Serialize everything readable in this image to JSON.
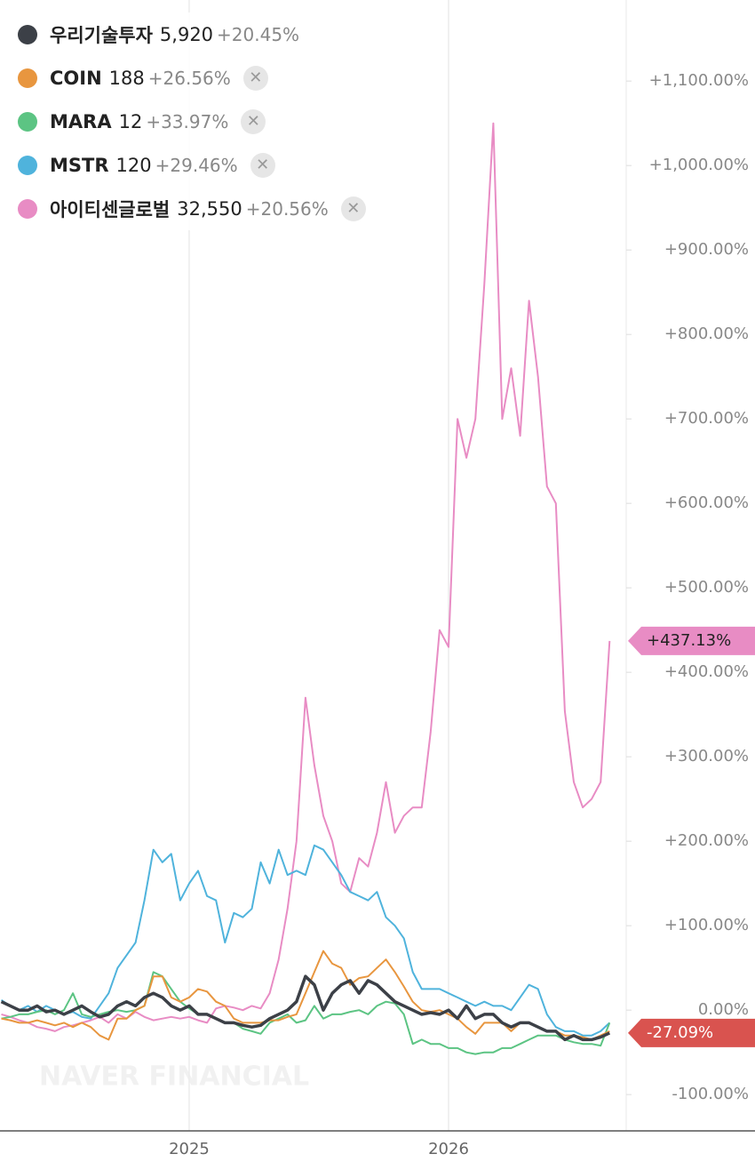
{
  "chart_data": {
    "type": "line",
    "categories": [
      null,
      null,
      null,
      null,
      null,
      null,
      null,
      null,
      null,
      null,
      null,
      null,
      null,
      null,
      null,
      null,
      null,
      null,
      null,
      null,
      null,
      "2025",
      null,
      null,
      null,
      null,
      null,
      null,
      null,
      null,
      null,
      null,
      null,
      null,
      null,
      null,
      null,
      null,
      null,
      null,
      null,
      null,
      null,
      null,
      null,
      null,
      null,
      null,
      null,
      null,
      "2026",
      null,
      null,
      null,
      null,
      null,
      null,
      null,
      null,
      null,
      null,
      null,
      null,
      null,
      null,
      null,
      null,
      null,
      null
    ],
    "ylim": [
      -143,
      1196
    ],
    "yticks": [
      {
        "value": -100,
        "label": "-100.00%"
      },
      {
        "value": 0,
        "label": "0.00%"
      },
      {
        "value": 100,
        "label": "+100.00%"
      },
      {
        "value": 200,
        "label": "+200.00%"
      },
      {
        "value": 300,
        "label": "+300.00%"
      },
      {
        "value": 400,
        "label": "+400.00%"
      },
      {
        "value": 500,
        "label": "+500.00%"
      },
      {
        "value": 600,
        "label": "+600.00%"
      },
      {
        "value": 700,
        "label": "+700.00%"
      },
      {
        "value": 800,
        "label": "+800.00%"
      },
      {
        "value": 900,
        "label": "+900.00%"
      },
      {
        "value": 1000,
        "label": "+1,000.00%"
      },
      {
        "value": 1100,
        "label": "+1,100.00%"
      }
    ],
    "watermark": "NAVER FINANCIAL",
    "series": [
      {
        "name": "우리기술투자",
        "price": "5,920",
        "change": "+20.45%",
        "color": "#3c4047",
        "end_label": "-27.09%",
        "end_label_color": "#d9534f",
        "values": [
          10,
          5,
          0,
          0,
          5,
          -2,
          0,
          -5,
          0,
          5,
          -2,
          -8,
          -5,
          5,
          10,
          5,
          15,
          20,
          15,
          5,
          0,
          5,
          -5,
          -5,
          -10,
          -15,
          -15,
          -18,
          -20,
          -18,
          -10,
          -5,
          0,
          10,
          40,
          30,
          0,
          20,
          30,
          35,
          20,
          35,
          30,
          20,
          10,
          5,
          0,
          -5,
          -3,
          -5,
          0,
          -10,
          5,
          -10,
          -5,
          -5,
          -15,
          -20,
          -15,
          -15,
          -20,
          -25,
          -25,
          -35,
          -30,
          -35,
          -35,
          -32,
          -27.09
        ]
      },
      {
        "name": "COIN",
        "price": "188",
        "change": "+26.56%",
        "color": "#e8963f",
        "values": [
          -10,
          -12,
          -15,
          -15,
          -12,
          -15,
          -18,
          -15,
          -20,
          -15,
          -20,
          -30,
          -35,
          -10,
          -10,
          0,
          5,
          40,
          40,
          15,
          10,
          15,
          25,
          22,
          10,
          5,
          -10,
          -15,
          -15,
          -15,
          -12,
          -12,
          -8,
          -5,
          20,
          45,
          70,
          55,
          50,
          30,
          38,
          40,
          50,
          60,
          45,
          28,
          10,
          0,
          -2,
          0,
          -5,
          -10,
          -20,
          -28,
          -15,
          -15,
          -15,
          -25,
          -15,
          -15,
          -20,
          -25,
          -25,
          -30,
          -30,
          -32,
          -35,
          -30,
          -25
        ]
      },
      {
        "name": "MARA",
        "price": "12",
        "change": "+33.97%",
        "color": "#5cc483",
        "values": [
          -10,
          -8,
          -5,
          -5,
          -2,
          0,
          -5,
          0,
          20,
          -5,
          -8,
          -5,
          -2,
          0,
          -2,
          0,
          5,
          45,
          40,
          25,
          10,
          2,
          -5,
          -5,
          -10,
          -15,
          -15,
          -22,
          -25,
          -28,
          -15,
          -10,
          -5,
          -15,
          -12,
          5,
          -10,
          -5,
          -5,
          -2,
          0,
          -5,
          5,
          10,
          8,
          -5,
          -40,
          -35,
          -40,
          -40,
          -45,
          -45,
          -50,
          -52,
          -50,
          -50,
          -45,
          -45,
          -40,
          -35,
          -30,
          -30,
          -30,
          -35,
          -38,
          -40,
          -40,
          -42,
          -15
        ]
      },
      {
        "name": "MSTR",
        "price": "120",
        "change": "+29.46%",
        "color": "#4fb3dc",
        "values": [
          12,
          5,
          0,
          5,
          -2,
          5,
          0,
          -5,
          -2,
          -8,
          -10,
          5,
          20,
          50,
          65,
          80,
          130,
          190,
          175,
          185,
          130,
          150,
          165,
          135,
          130,
          80,
          115,
          110,
          120,
          175,
          150,
          190,
          160,
          165,
          160,
          195,
          190,
          175,
          160,
          140,
          135,
          130,
          140,
          110,
          100,
          85,
          45,
          25,
          25,
          25,
          20,
          15,
          10,
          5,
          10,
          5,
          5,
          0,
          15,
          30,
          25,
          -5,
          -20,
          -25,
          -25,
          -30,
          -30,
          -25,
          -15
        ]
      },
      {
        "name": "아이티센글로벌",
        "price": "32,550",
        "change": "+20.56%",
        "color": "#e88cc4",
        "end_label": "+437.13%",
        "end_label_color": "#e88cc4",
        "values": [
          -5,
          -8,
          -12,
          -15,
          -20,
          -22,
          -25,
          -20,
          -18,
          -15,
          -12,
          -8,
          -15,
          -5,
          -10,
          -2,
          -8,
          -12,
          -10,
          -8,
          -10,
          -8,
          -12,
          -15,
          2,
          5,
          3,
          0,
          5,
          2,
          20,
          60,
          120,
          200,
          370,
          290,
          230,
          200,
          150,
          140,
          180,
          170,
          210,
          270,
          210,
          230,
          240,
          240,
          330,
          450,
          430,
          700,
          654,
          700,
          860,
          1050,
          700,
          760,
          680,
          840,
          750,
          620,
          600,
          354,
          270,
          240,
          250,
          270,
          437.13
        ]
      }
    ]
  }
}
